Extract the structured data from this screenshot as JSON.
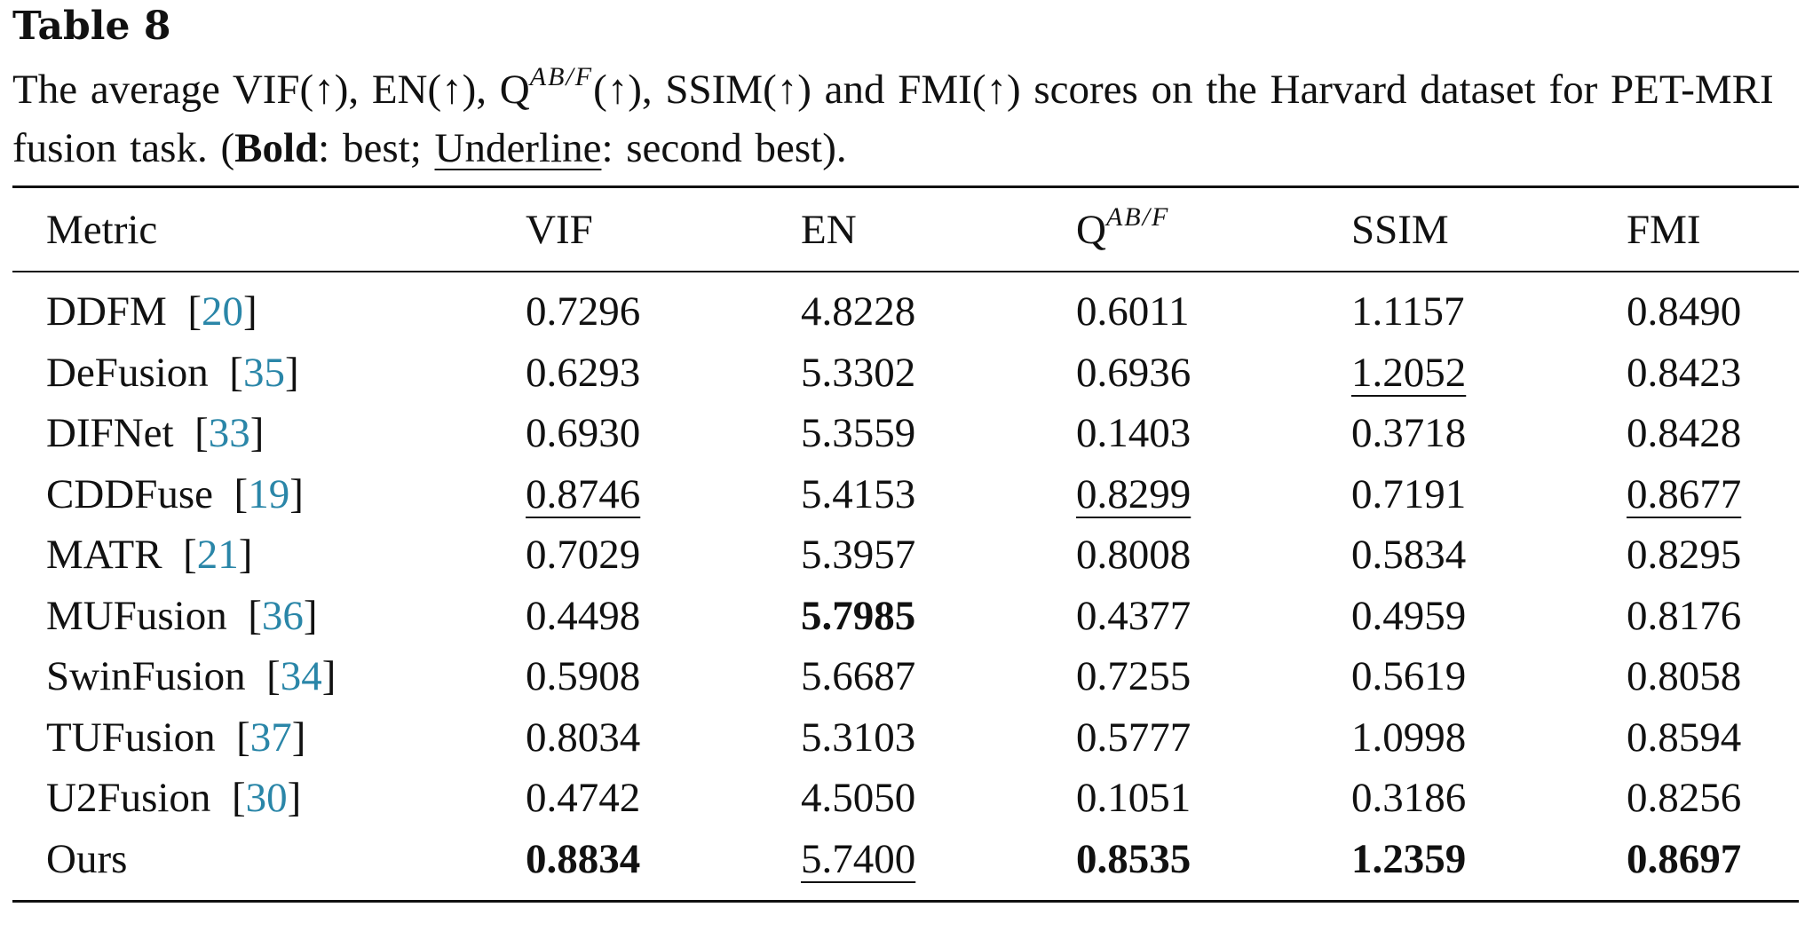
{
  "table_label": "Table 8",
  "caption": {
    "part1": "The average VIF(↑), EN(↑), Q",
    "q_sup": "AB/F",
    "part2": "(↑), SSIM(↑) and FMI(↑) scores on the Harvard dataset for PET-MRI fusion task. (",
    "bold_word": "Bold",
    "part3": ": best; ",
    "underline_word": "Underline",
    "part4": ": second best)."
  },
  "columns": {
    "metric": "Metric",
    "vif": "VIF",
    "en": "EN",
    "q_base": "Q",
    "q_sup": "AB/F",
    "ssim": "SSIM",
    "fmi": "FMI"
  },
  "rows": [
    {
      "method": "DDFM",
      "ref": "20",
      "vif": "0.7296",
      "en": "4.8228",
      "q": "0.6011",
      "ssim": "1.1157",
      "fmi": "0.8490"
    },
    {
      "method": "DeFusion",
      "ref": "35",
      "vif": "0.6293",
      "en": "5.3302",
      "q": "0.6936",
      "ssim": "1.2052",
      "fmi": "0.8423"
    },
    {
      "method": "DIFNet",
      "ref": "33",
      "vif": "0.6930",
      "en": "5.3559",
      "q": "0.1403",
      "ssim": "0.3718",
      "fmi": "0.8428"
    },
    {
      "method": "CDDFuse",
      "ref": "19",
      "vif": "0.8746",
      "en": "5.4153",
      "q": "0.8299",
      "ssim": "0.7191",
      "fmi": "0.8677"
    },
    {
      "method": "MATR",
      "ref": "21",
      "vif": "0.7029",
      "en": "5.3957",
      "q": "0.8008",
      "ssim": "0.5834",
      "fmi": "0.8295"
    },
    {
      "method": "MUFusion",
      "ref": "36",
      "vif": "0.4498",
      "en": "5.7985",
      "q": "0.4377",
      "ssim": "0.4959",
      "fmi": "0.8176"
    },
    {
      "method": "SwinFusion",
      "ref": "34",
      "vif": "0.5908",
      "en": "5.6687",
      "q": "0.7255",
      "ssim": "0.5619",
      "fmi": "0.8058"
    },
    {
      "method": "TUFusion",
      "ref": "37",
      "vif": "0.8034",
      "en": "5.3103",
      "q": "0.5777",
      "ssim": "1.0998",
      "fmi": "0.8594"
    },
    {
      "method": "U2Fusion",
      "ref": "30",
      "vif": "0.4742",
      "en": "4.5050",
      "q": "0.1051",
      "ssim": "0.3186",
      "fmi": "0.8256"
    },
    {
      "method": "Ours",
      "ref": "",
      "vif": "0.8834",
      "en": "5.7400",
      "q": "0.8535",
      "ssim": "1.2359",
      "fmi": "0.8697"
    }
  ],
  "emphasis": {
    "best": {
      "vif": 9,
      "en": 5,
      "q": 9,
      "ssim": 9,
      "fmi": 9
    },
    "second": {
      "vif": 3,
      "en": 9,
      "q": 3,
      "ssim": 1,
      "fmi": 3
    }
  },
  "colors": {
    "text": "#111111",
    "reference_link": "#2a86a8",
    "background": "#ffffff"
  }
}
